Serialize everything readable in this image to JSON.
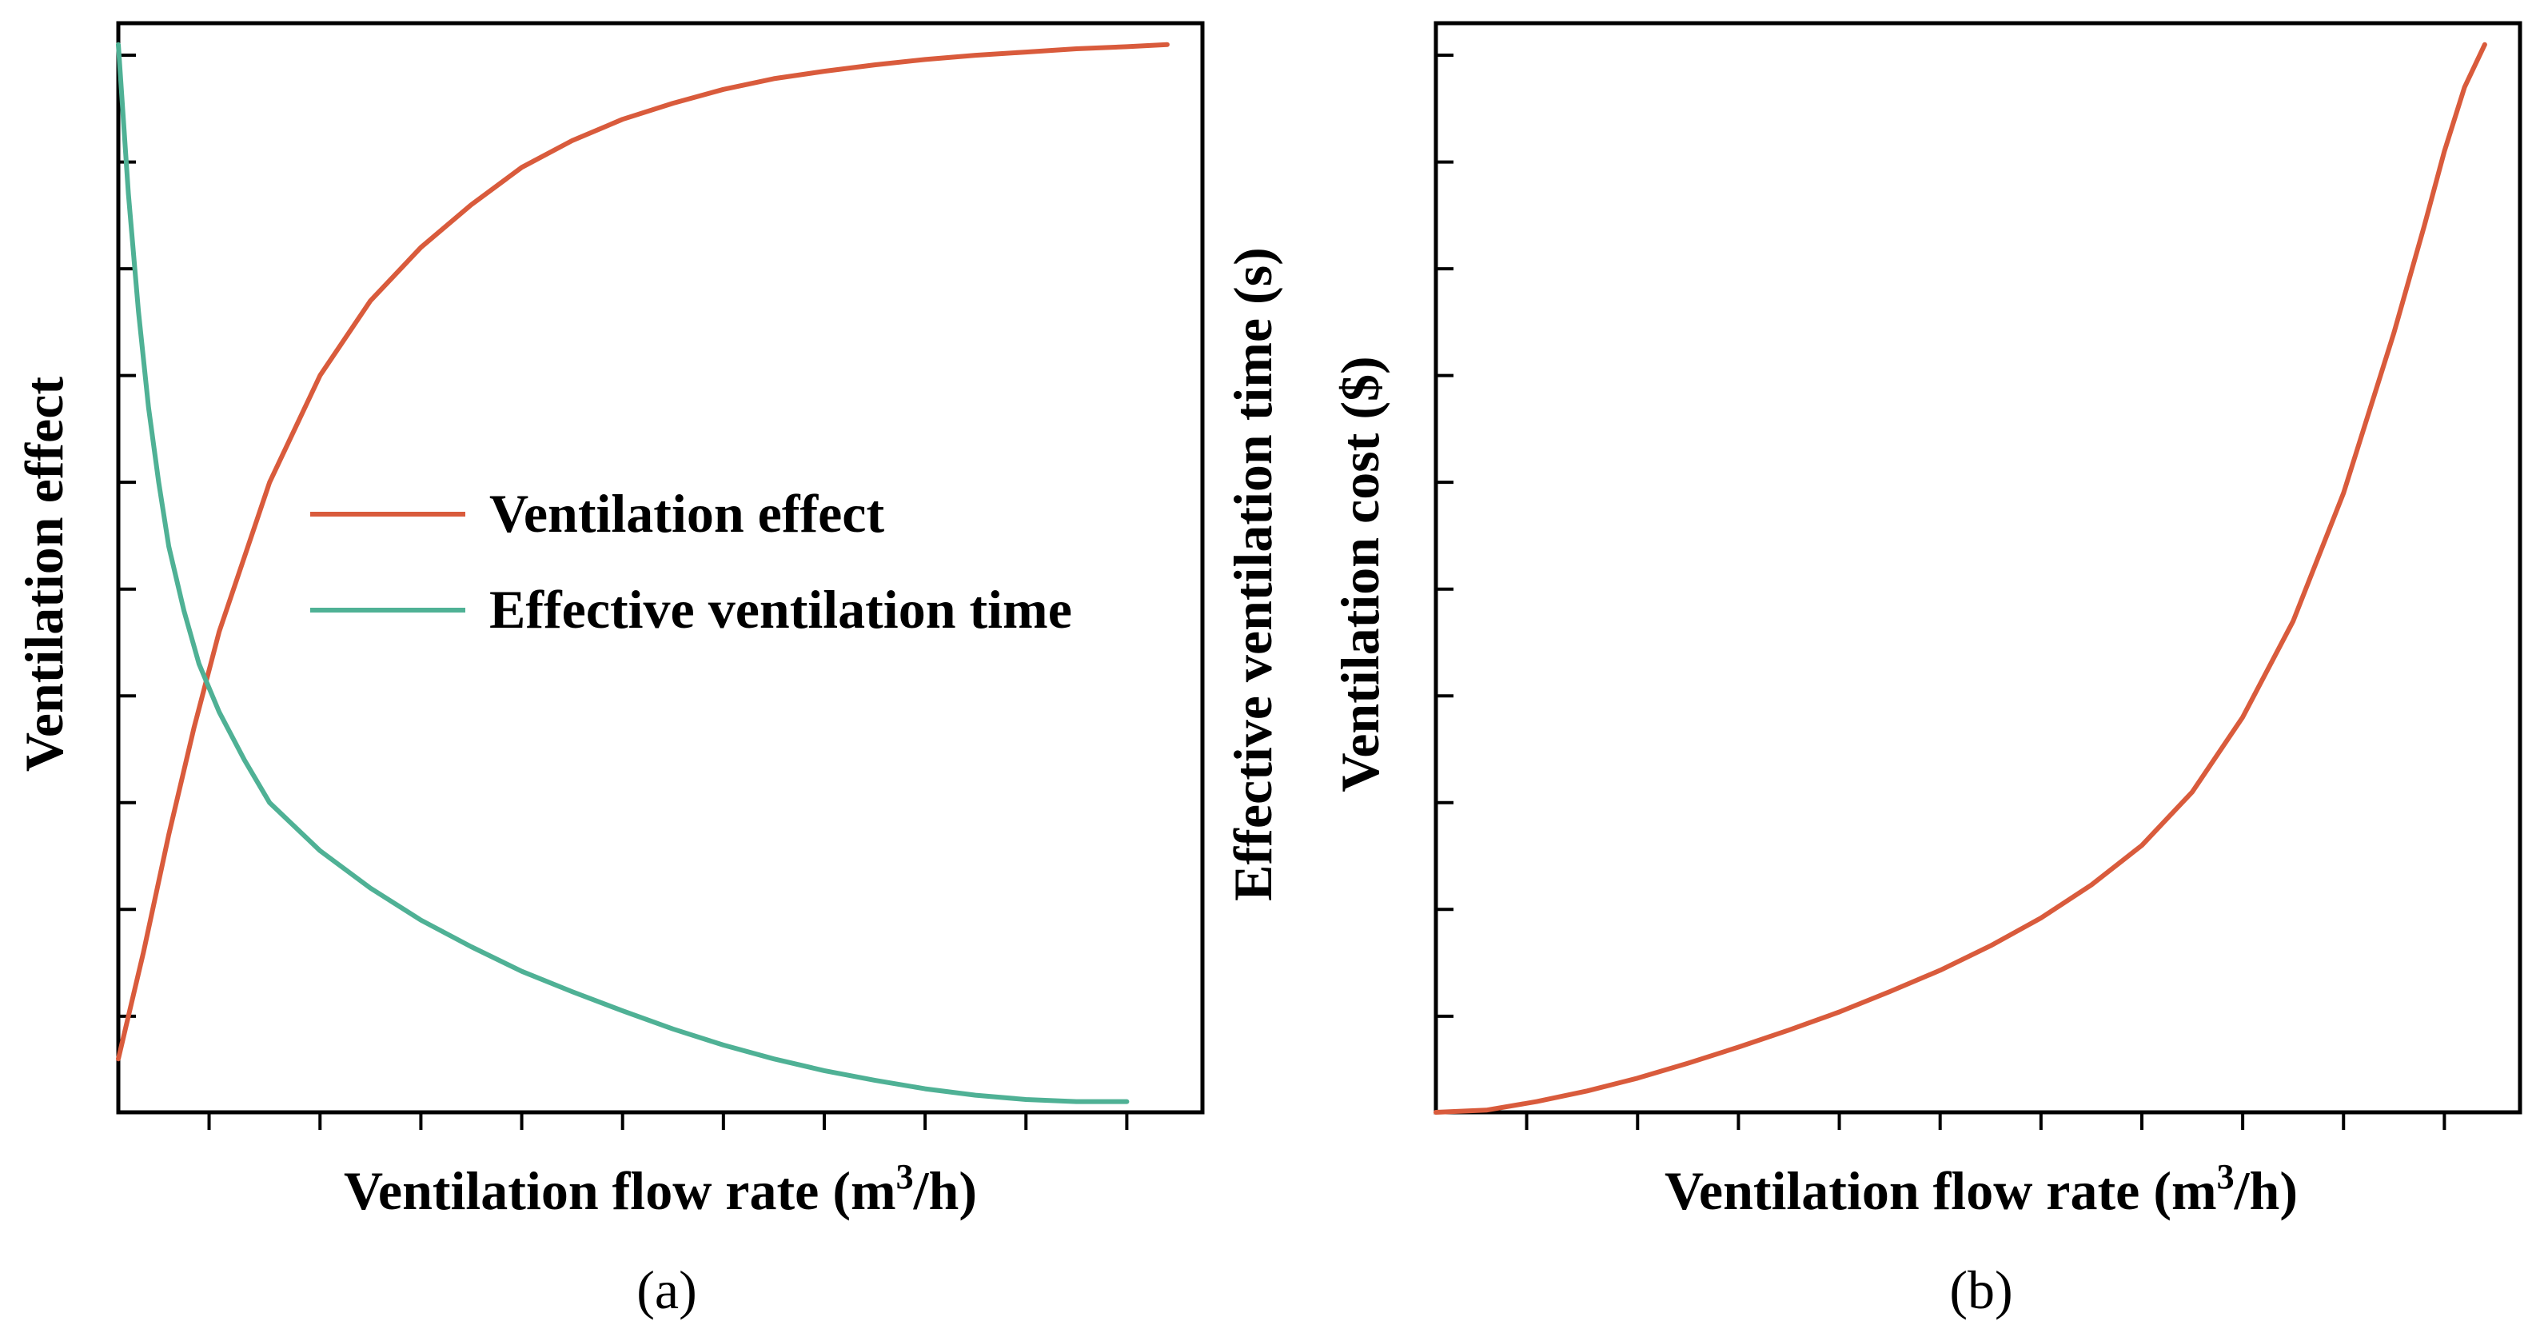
{
  "colors": {
    "ventilation_effect": "#D95B3C",
    "effective_ventilation_time": "#4FB195",
    "ventilation_cost": "#D95B3C",
    "axis": "#000000"
  },
  "chart_data": [
    {
      "type": "line",
      "panel_label": "(a)",
      "xlabel_parts": [
        "Ventilation flow rate (m",
        "3",
        "/h)"
      ],
      "ylabel_left": "Ventilation effect",
      "ylabel_right": "Effective ventilation time (s)",
      "tick_labels_shown": false,
      "xlim": [
        0,
        1.075
      ],
      "ylim": [
        0,
        1.02
      ],
      "x_ticks": [
        0.09,
        0.2,
        0.3,
        0.4,
        0.5,
        0.6,
        0.7,
        0.8,
        0.9,
        1.0
      ],
      "y_ticks": [
        0.09,
        0.19,
        0.29,
        0.39,
        0.49,
        0.59,
        0.69,
        0.79,
        0.89,
        0.99
      ],
      "legend": {
        "position": "center-right",
        "entries": [
          "Ventilation effect",
          "Effective ventilation time"
        ]
      },
      "series": [
        {
          "name": "Ventilation effect",
          "color_key": "ventilation_effect",
          "x": [
            0.0,
            0.025,
            0.05,
            0.075,
            0.1,
            0.125,
            0.15,
            0.2,
            0.25,
            0.3,
            0.35,
            0.4,
            0.45,
            0.5,
            0.55,
            0.6,
            0.65,
            0.7,
            0.75,
            0.8,
            0.85,
            0.9,
            0.95,
            1.0,
            1.04
          ],
          "values": [
            0.05,
            0.15,
            0.26,
            0.36,
            0.45,
            0.52,
            0.59,
            0.69,
            0.76,
            0.81,
            0.85,
            0.885,
            0.91,
            0.93,
            0.945,
            0.958,
            0.968,
            0.975,
            0.981,
            0.986,
            0.99,
            0.993,
            0.996,
            0.998,
            1.0
          ]
        },
        {
          "name": "Effective ventilation time",
          "color_key": "effective_ventilation_time",
          "x": [
            0.0,
            0.01,
            0.02,
            0.03,
            0.04,
            0.05,
            0.065,
            0.08,
            0.1,
            0.125,
            0.15,
            0.2,
            0.25,
            0.3,
            0.35,
            0.4,
            0.45,
            0.5,
            0.55,
            0.6,
            0.65,
            0.7,
            0.75,
            0.8,
            0.85,
            0.9,
            0.95,
            1.0
          ],
          "values": [
            1.0,
            0.86,
            0.75,
            0.66,
            0.59,
            0.53,
            0.47,
            0.42,
            0.375,
            0.33,
            0.29,
            0.245,
            0.21,
            0.18,
            0.155,
            0.132,
            0.113,
            0.095,
            0.078,
            0.063,
            0.05,
            0.039,
            0.03,
            0.022,
            0.016,
            0.012,
            0.01,
            0.01
          ]
        }
      ]
    },
    {
      "type": "line",
      "panel_label": "(b)",
      "xlabel_parts": [
        "Ventilation flow rate (m",
        "3",
        "/h)"
      ],
      "ylabel": "Ventilation cost ($)",
      "tick_labels_shown": false,
      "xlim": [
        0,
        1.075
      ],
      "ylim": [
        0,
        1.02
      ],
      "x_ticks": [
        0.09,
        0.2,
        0.3,
        0.4,
        0.5,
        0.6,
        0.7,
        0.8,
        0.9,
        1.0
      ],
      "y_ticks": [
        0.09,
        0.19,
        0.29,
        0.39,
        0.49,
        0.59,
        0.69,
        0.79,
        0.89,
        0.99
      ],
      "series": [
        {
          "color_key": "ventilation_cost",
          "x": [
            0.0,
            0.05,
            0.1,
            0.15,
            0.2,
            0.25,
            0.3,
            0.35,
            0.4,
            0.45,
            0.5,
            0.55,
            0.6,
            0.65,
            0.7,
            0.75,
            0.8,
            0.85,
            0.9,
            0.95,
            0.98,
            1.0,
            1.02,
            1.04
          ],
          "values": [
            0.0,
            0.002,
            0.01,
            0.02,
            0.032,
            0.046,
            0.061,
            0.077,
            0.094,
            0.113,
            0.133,
            0.156,
            0.182,
            0.213,
            0.25,
            0.3,
            0.37,
            0.46,
            0.58,
            0.73,
            0.83,
            0.9,
            0.96,
            1.0
          ]
        }
      ]
    }
  ]
}
